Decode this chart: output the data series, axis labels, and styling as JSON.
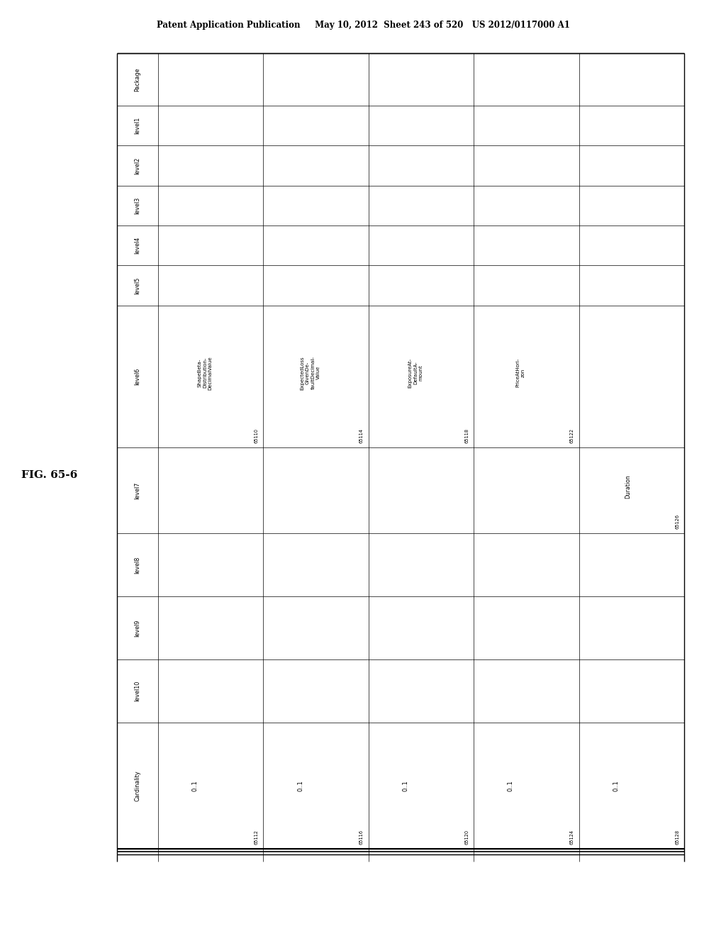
{
  "header_text": "Patent Application Publication     May 10, 2012  Sheet 243 of 520   US 2012/0117000 A1",
  "fig_label": "FIG. 65-6",
  "row_headers": [
    "Package",
    "level1",
    "level2",
    "level3",
    "level4",
    "level5",
    "level6",
    "level7",
    "level8",
    "level9",
    "level10",
    "Cardinality"
  ],
  "row_header_widths": [
    0.5,
    0.38,
    0.38,
    0.38,
    0.38,
    0.38,
    1.35,
    0.82,
    0.6,
    0.6,
    0.6,
    1.2
  ],
  "num_data_cols": 5,
  "cell_contents": {
    "level6_col0": {
      "text": "ShapeBeta-\nDistribution-\nDecimalValue",
      "id": "65110"
    },
    "level6_col1": {
      "text": "ExpectedLoss\nGivenDe-\nfaultDecimal-\nValue",
      "id": "65114"
    },
    "level6_col2": {
      "text": "ExposureAt-\nDefaultA-\nmount",
      "id": "65118"
    },
    "level6_col3": {
      "text": "PriceAtHori-\nzon",
      "id": "65122"
    },
    "level7_col4": {
      "text": "Duration",
      "id": "65126"
    },
    "card_col0": {
      "text": "0..1",
      "id": "65112"
    },
    "card_col1": {
      "text": "0..1",
      "id": "65116"
    },
    "card_col2": {
      "text": "0..1",
      "id": "65120"
    },
    "card_col3": {
      "text": "0..1",
      "id": "65124"
    },
    "card_col4": {
      "text": "0..1",
      "id": "65128"
    }
  },
  "background_color": "#ffffff",
  "text_color": "#000000"
}
